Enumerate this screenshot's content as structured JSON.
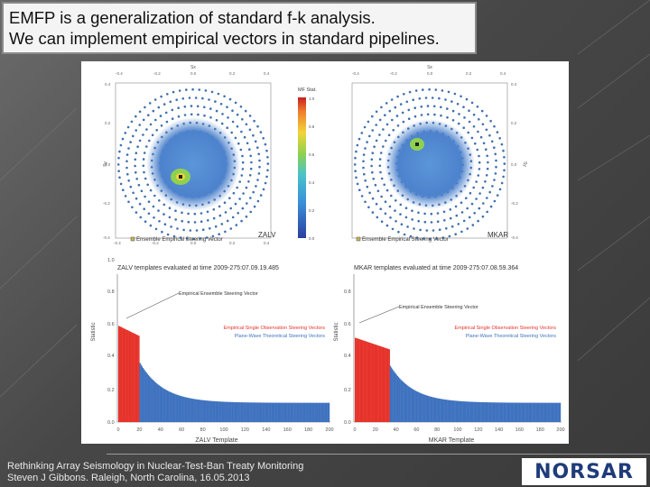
{
  "slide": {
    "title_line1": "EMFP is a generalization of standard f-k analysis.",
    "title_line2": "We can implement empirical vectors in standard pipelines.",
    "footer_line1": "Rethinking Array Seismology in Nuclear-Test-Ban Treaty Monitoring",
    "footer_line2": "Steven J Gibbons. Raleigh, North Carolina, 16.05.2013",
    "logo_text": "NORSAR",
    "colors": {
      "accent_red": "#e6322a",
      "accent_blue": "#3f72bf",
      "logo": "#1e3b7a"
    }
  },
  "figure": {
    "left_map": {
      "station": "ZALV",
      "legend": "Ensemble Empirical Steering Vector",
      "x_axis": "Sx",
      "y_axis": "Sy",
      "x_ticks": [
        "-0.4",
        "-0.2",
        "0.0",
        "0.2",
        "0.4"
      ],
      "y_ticks": [
        "0.4",
        "0.2",
        "0.0",
        "-0.2",
        "-0.4"
      ]
    },
    "right_map": {
      "station": "MKAR",
      "legend": "Ensemble Empirical Steering Vector",
      "x_axis": "Sx",
      "y_axis": "Sy",
      "x_ticks": [
        "-0.4",
        "-0.2",
        "0.0",
        "0.2",
        "0.4"
      ],
      "y_ticks": [
        "0.4",
        "0.2",
        "0.0",
        "-0.2",
        "-0.4"
      ]
    },
    "colorbar": {
      "label": "MF Stat.",
      "ticks": [
        "1.0",
        "0.8",
        "0.6",
        "0.4",
        "0.2",
        "0.0"
      ]
    },
    "left_chart": {
      "title": "ZALV templates evaluated at time 2009-275:07.09.19.485",
      "annotation": "Empirical Ensemble Steering Vector",
      "legend_red": "Empirical Single Observation Steering Vectors",
      "legend_blue": "Plane-Wave Theoretical Steering Vectors",
      "xlabel": "ZALV Template",
      "ylabel": "Statistic",
      "x_ticks": [
        "0",
        "20",
        "40",
        "60",
        "80",
        "100",
        "120",
        "140",
        "160",
        "180",
        "200"
      ],
      "y_ticks": [
        "1.0",
        "0.8",
        "0.6",
        "0.4",
        "0.2",
        "0.0"
      ]
    },
    "right_chart": {
      "title": "MKAR templates evaluated at time 2009-275:07.08.59.364",
      "annotation": "Empirical Ensemble Steering Vector",
      "legend_red": "Empirical Single Observation Steering Vectors",
      "legend_blue": "Plane-Wave Theoretical Steering Vectors",
      "xlabel": "MKAR Template",
      "ylabel": "Statistic",
      "x_ticks": [
        "0",
        "20",
        "40",
        "60",
        "80",
        "100",
        "120",
        "140",
        "160",
        "180",
        "200"
      ],
      "y_ticks": [
        "1.0",
        "0.8",
        "0.6",
        "0.4",
        "0.2",
        "0.0"
      ]
    }
  }
}
